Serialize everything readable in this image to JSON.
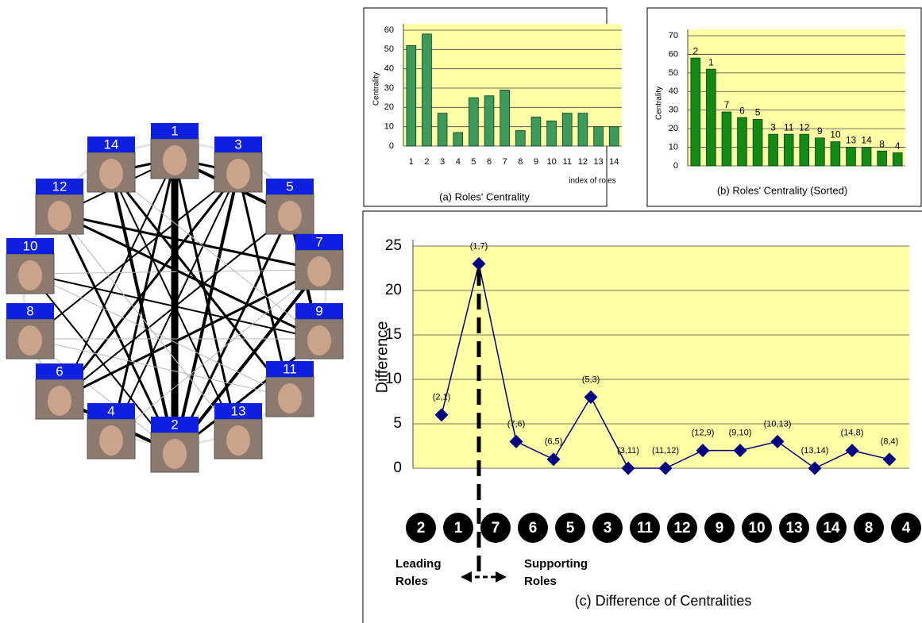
{
  "chart_data": [
    {
      "type": "bar",
      "categories": [
        "1",
        "2",
        "3",
        "4",
        "5",
        "6",
        "7",
        "8",
        "9",
        "10",
        "11",
        "12",
        "13",
        "14"
      ],
      "values": [
        52,
        58,
        17,
        7,
        25,
        26,
        29,
        8,
        15,
        13,
        17,
        17,
        10,
        10
      ],
      "color": "#3c9a5c",
      "plot_color": "#ffffa6",
      "ylabel": "Centrality",
      "xlabel": "index of roles",
      "caption": "(a) Roles' Centrality",
      "ylim": [
        0,
        60
      ],
      "yticks": [
        0,
        10,
        20,
        30,
        40,
        50,
        60
      ],
      "grid": true
    },
    {
      "type": "bar",
      "categories": [
        "2",
        "1",
        "7",
        "6",
        "5",
        "3",
        "11",
        "12",
        "9",
        "10",
        "13",
        "14",
        "8",
        "4"
      ],
      "values": [
        58,
        52,
        29,
        26,
        25,
        17,
        17,
        17,
        15,
        13,
        10,
        10,
        8,
        7
      ],
      "color": "#138a13",
      "plot_color": "#ffffa6",
      "ylabel": "Centrality",
      "caption": "(b) Roles' Centrality (Sorted)",
      "ylim": [
        0,
        70
      ],
      "yticks": [
        0,
        10,
        20,
        30,
        40,
        50,
        60,
        70
      ],
      "grid": true
    },
    {
      "type": "line",
      "categories": [
        "(2,1)",
        "(1,7)",
        "(7,6)",
        "(6,5)",
        "(5,3)",
        "(3,11)",
        "(11,12)",
        "(12,9)",
        "(9,10)",
        "(10,13)",
        "(13,14)",
        "(14,8)",
        "(8,4)"
      ],
      "values": [
        6,
        23,
        3,
        1,
        8,
        0,
        0,
        2,
        2,
        3,
        0,
        2,
        1
      ],
      "color": "#000080",
      "plot_color": "#ffffa6",
      "ylabel": "Difference",
      "caption": "(c) Difference of Centralities",
      "ylim": [
        0,
        25
      ],
      "yticks": [
        0,
        5,
        10,
        15,
        20,
        25
      ],
      "grid": true,
      "role_order": [
        "2",
        "1",
        "7",
        "6",
        "5",
        "3",
        "11",
        "12",
        "9",
        "10",
        "13",
        "14",
        "8",
        "4"
      ],
      "annotations": [
        "Leading Roles",
        "Supporting Roles"
      ]
    }
  ],
  "network": {
    "nodes": [
      {
        "label": "1"
      },
      {
        "label": "14"
      },
      {
        "label": "3"
      },
      {
        "label": "12"
      },
      {
        "label": "5"
      },
      {
        "label": "10"
      },
      {
        "label": "7"
      },
      {
        "label": "8"
      },
      {
        "label": "9"
      },
      {
        "label": "6"
      },
      {
        "label": "11"
      },
      {
        "label": "4"
      },
      {
        "label": "13"
      },
      {
        "label": "2"
      }
    ]
  }
}
